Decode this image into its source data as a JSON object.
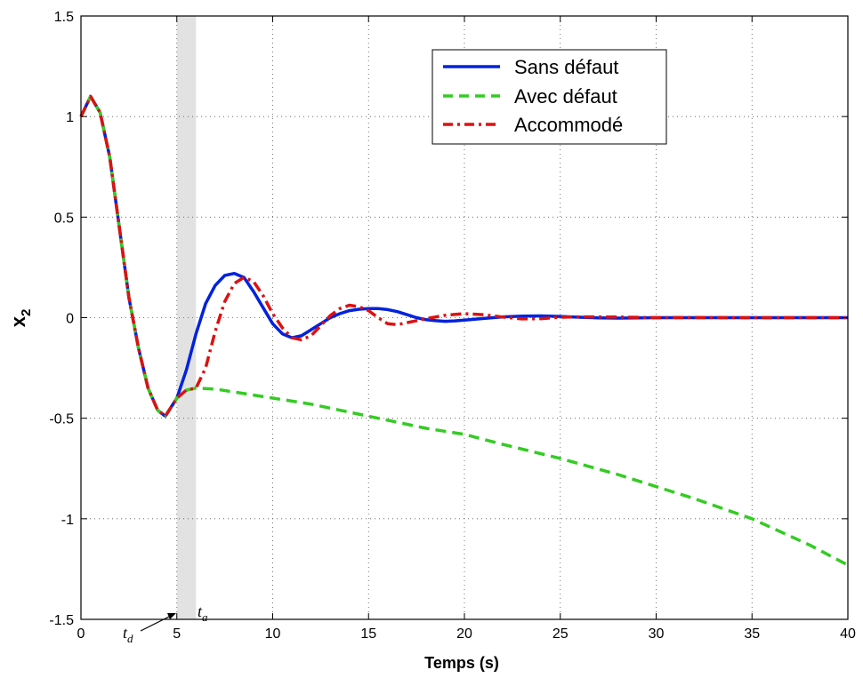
{
  "chart_data": {
    "type": "line",
    "title": "",
    "xlabel": "Temps (s)",
    "ylabel_main": "x",
    "ylabel_sub": "2",
    "xlim": [
      0,
      40
    ],
    "ylim": [
      -1.5,
      1.5
    ],
    "xticks": [
      0,
      5,
      10,
      15,
      20,
      25,
      30,
      35,
      40
    ],
    "yticks": [
      -1.5,
      -1,
      -0.5,
      0,
      0.5,
      1,
      1.5
    ],
    "xtick_labels": [
      "0",
      "5",
      "10",
      "15",
      "20",
      "25",
      "30",
      "35",
      "40"
    ],
    "ytick_labels": [
      "-1.5",
      "-1",
      "-0.5",
      "0",
      "0.5",
      "1",
      "1.5"
    ],
    "grid": true,
    "legend_position": "top-right",
    "shaded_region": {
      "x_start": 5,
      "x_end": 6,
      "color": "#e2e2e2"
    },
    "annotations": {
      "td": {
        "main": "t",
        "sub": "d",
        "x": 5
      },
      "ta": {
        "main": "t",
        "sub": "a",
        "x": 6
      }
    },
    "series": [
      {
        "name": "Sans défaut",
        "color": "#0022dd",
        "style": "solid",
        "x": [
          0,
          0.5,
          1,
          1.5,
          2,
          2.5,
          3,
          3.5,
          4,
          4.4,
          5,
          5.5,
          6,
          6.5,
          7,
          7.5,
          8,
          8.5,
          9,
          9.5,
          10,
          10.5,
          11,
          11.5,
          12,
          12.5,
          13,
          13.5,
          14,
          14.5,
          15,
          15.5,
          16,
          16.5,
          17,
          17.5,
          18,
          18.5,
          19,
          19.5,
          20,
          21,
          22,
          23,
          24,
          25,
          26,
          27,
          28,
          30,
          32,
          34,
          36,
          38,
          40
        ],
        "y": [
          1.0,
          1.1,
          1.02,
          0.8,
          0.45,
          0.1,
          -0.15,
          -0.35,
          -0.46,
          -0.49,
          -0.4,
          -0.26,
          -0.08,
          0.07,
          0.16,
          0.21,
          0.22,
          0.2,
          0.13,
          0.05,
          -0.03,
          -0.08,
          -0.1,
          -0.09,
          -0.06,
          -0.03,
          0.0,
          0.02,
          0.035,
          0.042,
          0.045,
          0.045,
          0.04,
          0.03,
          0.015,
          0.0,
          -0.01,
          -0.015,
          -0.018,
          -0.016,
          -0.012,
          -0.004,
          0.004,
          0.008,
          0.009,
          0.006,
          0.002,
          -0.001,
          -0.002,
          0.0,
          0.0,
          0.0,
          0.0,
          0.0,
          0.0
        ]
      },
      {
        "name": "Avec défaut",
        "color": "#33cc22",
        "style": "dashed",
        "x": [
          0,
          0.5,
          1,
          1.5,
          2,
          2.5,
          3,
          3.5,
          4,
          4.4,
          5,
          5.5,
          6,
          7,
          8,
          10,
          12,
          15,
          18,
          20,
          22,
          25,
          28,
          30,
          32,
          35,
          38,
          40
        ],
        "y": [
          1.0,
          1.1,
          1.02,
          0.8,
          0.45,
          0.1,
          -0.15,
          -0.35,
          -0.46,
          -0.49,
          -0.4,
          -0.36,
          -0.35,
          -0.355,
          -0.37,
          -0.4,
          -0.43,
          -0.49,
          -0.55,
          -0.58,
          -0.63,
          -0.7,
          -0.78,
          -0.84,
          -0.9,
          -1.0,
          -1.13,
          -1.23
        ]
      },
      {
        "name": "Accommodé",
        "color": "#dd1111",
        "style": "dashdot",
        "x": [
          0,
          0.5,
          1,
          1.5,
          2,
          2.5,
          3,
          3.5,
          4,
          4.4,
          5,
          5.5,
          6,
          6.5,
          7,
          7.5,
          8,
          8.5,
          9,
          9.5,
          10,
          10.5,
          11,
          11.5,
          12,
          12.5,
          13,
          13.5,
          14,
          14.5,
          15,
          15.5,
          16,
          16.5,
          17,
          18,
          19,
          20,
          21,
          22,
          23,
          24,
          25,
          26,
          28,
          30,
          32,
          34,
          36,
          38,
          40
        ],
        "y": [
          1.0,
          1.1,
          1.02,
          0.8,
          0.45,
          0.1,
          -0.15,
          -0.35,
          -0.46,
          -0.49,
          -0.4,
          -0.36,
          -0.35,
          -0.25,
          -0.07,
          0.08,
          0.17,
          0.2,
          0.18,
          0.11,
          0.02,
          -0.05,
          -0.1,
          -0.11,
          -0.09,
          -0.04,
          0.01,
          0.045,
          0.062,
          0.055,
          0.035,
          0.0,
          -0.03,
          -0.035,
          -0.025,
          -0.005,
          0.012,
          0.02,
          0.015,
          0.003,
          -0.006,
          -0.005,
          0.002,
          0.004,
          0.003,
          0.0,
          0.001,
          0.0,
          0.0,
          0.0,
          0.0
        ]
      }
    ]
  }
}
